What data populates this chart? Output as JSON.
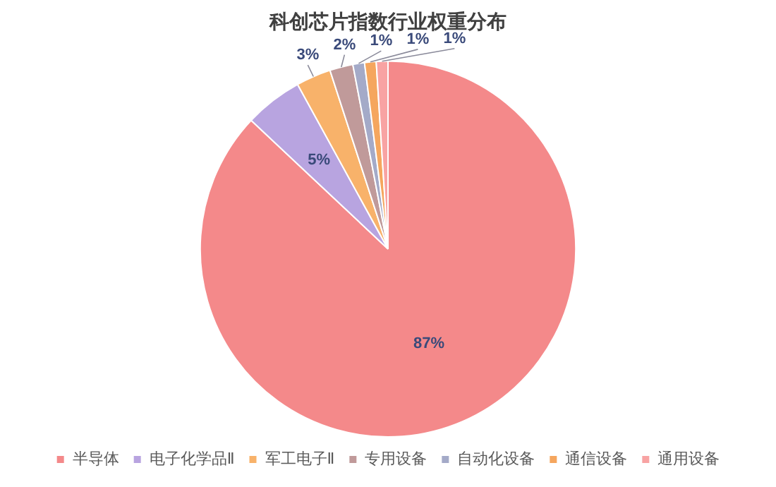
{
  "chart_data": {
    "type": "pie",
    "title": "科创芯片指数行业权重分布",
    "categories": [
      "半导体",
      "电子化学品Ⅱ",
      "军工电子Ⅱ",
      "专用设备",
      "自动化设备",
      "通信设备",
      "通用设备"
    ],
    "values": [
      87,
      5,
      3,
      2,
      1,
      1,
      1
    ],
    "colors": [
      "#f4898a",
      "#b8a4e0",
      "#f8b26a",
      "#c09a9a",
      "#a4aac8",
      "#f5a65e",
      "#f8a3a3"
    ],
    "value_labels": [
      "87%",
      "5%",
      "3%",
      "2%",
      "1%",
      "1%",
      "1%"
    ],
    "legend": "bottom"
  }
}
